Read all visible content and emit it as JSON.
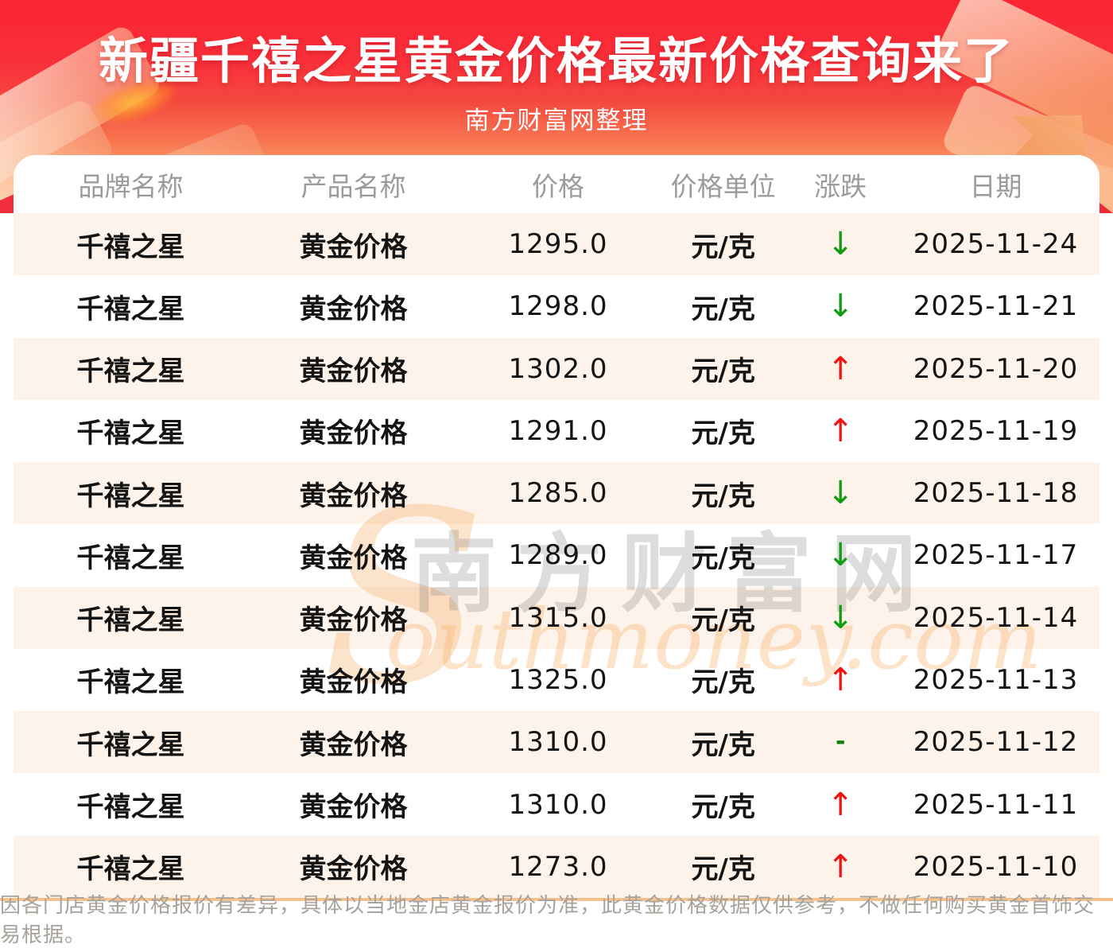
{
  "banner": {
    "title": "新疆千禧之星黄金价格最新价格查询来了",
    "subtitle": "南方财富网整理"
  },
  "table": {
    "headers": [
      "品牌名称",
      "产品名称",
      "价格",
      "价格单位",
      "涨跌",
      "日期"
    ],
    "symbols": {
      "up": "↑",
      "down": "↓",
      "flat": "-"
    },
    "rows": [
      {
        "brand": "千禧之星",
        "product": "黄金价格",
        "price": "1295.0",
        "unit": "元/克",
        "change": "down",
        "date": "2025-11-24"
      },
      {
        "brand": "千禧之星",
        "product": "黄金价格",
        "price": "1298.0",
        "unit": "元/克",
        "change": "down",
        "date": "2025-11-21"
      },
      {
        "brand": "千禧之星",
        "product": "黄金价格",
        "price": "1302.0",
        "unit": "元/克",
        "change": "up",
        "date": "2025-11-20"
      },
      {
        "brand": "千禧之星",
        "product": "黄金价格",
        "price": "1291.0",
        "unit": "元/克",
        "change": "up",
        "date": "2025-11-19"
      },
      {
        "brand": "千禧之星",
        "product": "黄金价格",
        "price": "1285.0",
        "unit": "元/克",
        "change": "down",
        "date": "2025-11-18"
      },
      {
        "brand": "千禧之星",
        "product": "黄金价格",
        "price": "1289.0",
        "unit": "元/克",
        "change": "down",
        "date": "2025-11-17"
      },
      {
        "brand": "千禧之星",
        "product": "黄金价格",
        "price": "1315.0",
        "unit": "元/克",
        "change": "down",
        "date": "2025-11-14"
      },
      {
        "brand": "千禧之星",
        "product": "黄金价格",
        "price": "1325.0",
        "unit": "元/克",
        "change": "up",
        "date": "2025-11-13"
      },
      {
        "brand": "千禧之星",
        "product": "黄金价格",
        "price": "1310.0",
        "unit": "元/克",
        "change": "flat",
        "date": "2025-11-12"
      },
      {
        "brand": "千禧之星",
        "product": "黄金价格",
        "price": "1310.0",
        "unit": "元/克",
        "change": "up",
        "date": "2025-11-11"
      },
      {
        "brand": "千禧之星",
        "product": "黄金价格",
        "price": "1273.0",
        "unit": "元/克",
        "change": "up",
        "date": "2025-11-10"
      }
    ]
  },
  "watermark": {
    "initial": "S",
    "cn": "南方财富网",
    "en": "outhmoney.com"
  },
  "footer": {
    "disclaimer": "因各门店黄金价格报价有差异，具体以当地金店黄金报价为准，此黄金价格数据仅供参考，不做任何购买黄金首饰交易根据。"
  },
  "colors": {
    "banner_red": "#fb2433",
    "banner_orange": "#fdd9ae",
    "row_alt": "#fdf3ea",
    "divider": "#f5c28e",
    "up_red": "#f21212",
    "down_green": "#109b10",
    "header_gray": "#9b9b9b"
  }
}
